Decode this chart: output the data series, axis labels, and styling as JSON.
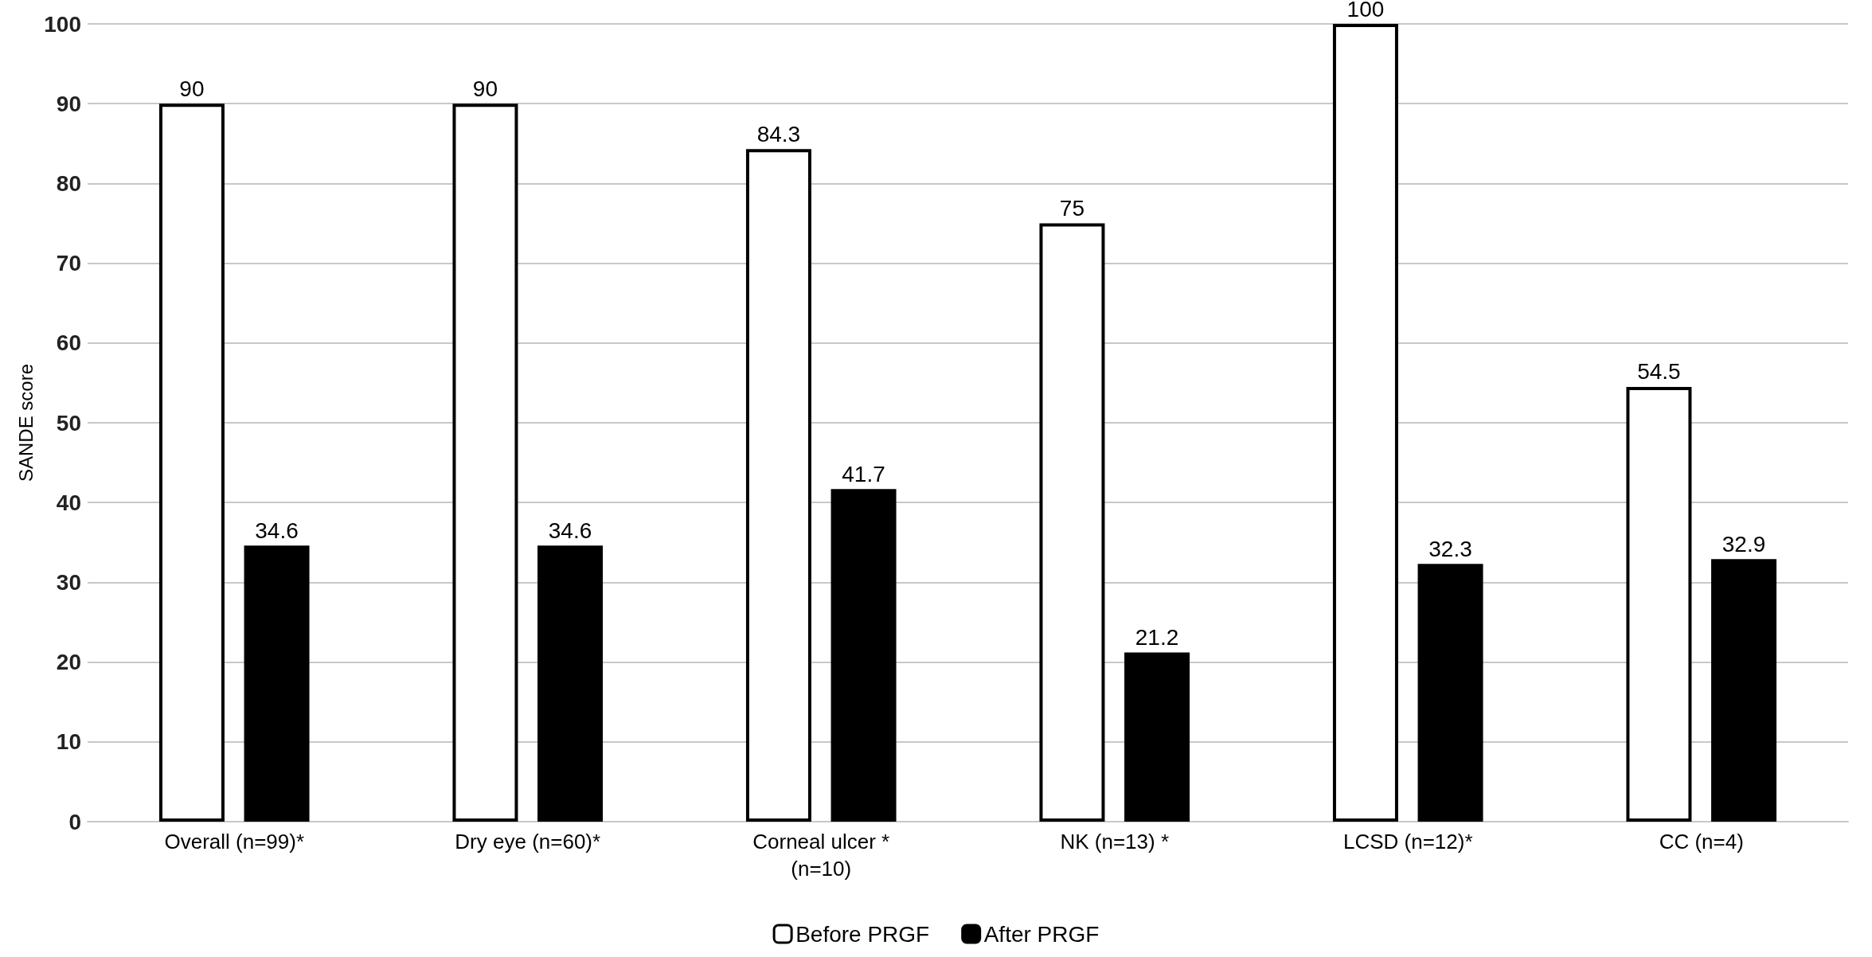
{
  "chart_data": {
    "type": "bar",
    "ylabel": "SANDE score",
    "categories": [
      "Overall (n=99)*",
      "Dry eye (n=60)*",
      "Corneal ulcer *\n(n=10)",
      "NK (n=13) *",
      "LCSD (n=12)*",
      "CC (n=4)"
    ],
    "series": [
      {
        "name": "Before PRGF",
        "color": "#ffffff",
        "values": [
          90,
          90,
          84.3,
          75,
          100,
          54.5
        ]
      },
      {
        "name": "After PRGF",
        "color": "#000000",
        "values": [
          34.6,
          34.6,
          41.7,
          21.2,
          32.3,
          32.9
        ]
      }
    ],
    "ylim": [
      0,
      100
    ],
    "yticks": [
      0,
      10,
      20,
      30,
      40,
      50,
      60,
      70,
      80,
      90,
      100
    ],
    "grid": "y",
    "legend": "bottom",
    "data_labels": true
  }
}
